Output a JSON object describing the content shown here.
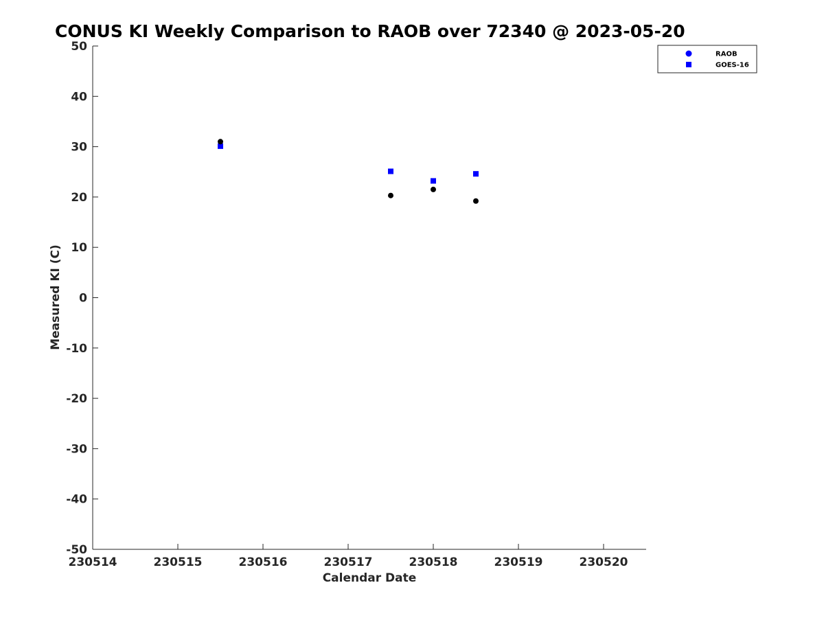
{
  "chart_data": {
    "type": "scatter",
    "title": "CONUS KI Weekly Comparison to RAOB over 72340 @ 2023-05-20",
    "xlabel": "Calendar Date",
    "ylabel": "Measured KI (C)",
    "xlim": [
      230514,
      230520.5
    ],
    "ylim": [
      -50,
      50
    ],
    "xticks": [
      230514,
      230515,
      230516,
      230517,
      230518,
      230519,
      230520
    ],
    "xtick_labels": [
      "230514",
      "230515",
      "230516",
      "230517",
      "230518",
      "230519",
      "230520"
    ],
    "yticks": [
      -50,
      -40,
      -30,
      -20,
      -10,
      0,
      10,
      20,
      30,
      40,
      50
    ],
    "ytick_labels": [
      "-50",
      "-40",
      "-30",
      "-20",
      "-10",
      "0",
      "10",
      "20",
      "30",
      "40",
      "50"
    ],
    "grid": false,
    "legend_position": "top-right",
    "series": [
      {
        "name": "RAOB",
        "marker": "circle",
        "color": "#000000",
        "legend_color": "#0000ff",
        "points": [
          {
            "x": 230515.5,
            "y": 31.0
          },
          {
            "x": 230517.5,
            "y": 20.3
          },
          {
            "x": 230518.0,
            "y": 21.5
          },
          {
            "x": 230518.5,
            "y": 19.2
          }
        ]
      },
      {
        "name": "GOES-16",
        "marker": "square",
        "color": "#0000ff",
        "legend_color": "#0000ff",
        "points": [
          {
            "x": 230515.5,
            "y": 30.1
          },
          {
            "x": 230517.5,
            "y": 25.1
          },
          {
            "x": 230518.0,
            "y": 23.2
          },
          {
            "x": 230518.5,
            "y": 24.6
          }
        ]
      }
    ]
  }
}
